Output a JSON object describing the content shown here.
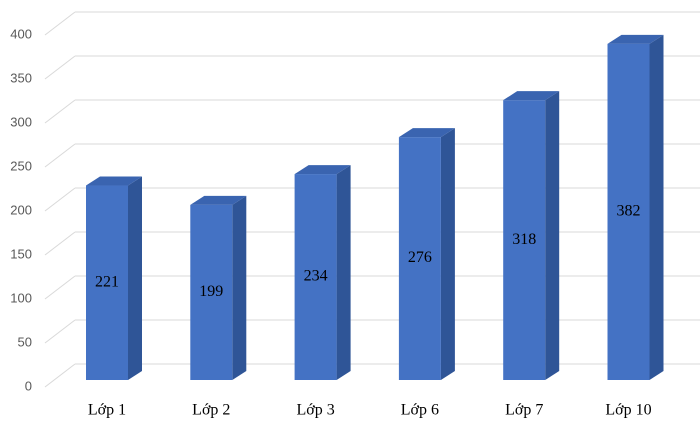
{
  "chart_data": {
    "type": "bar3d",
    "categories": [
      "Lớp 1",
      "Lớp 2",
      "Lớp 3",
      "Lớp 6",
      "Lớp 7",
      "Lớp 10"
    ],
    "values": [
      221,
      199,
      234,
      276,
      318,
      382
    ],
    "color": "#4472c4",
    "ylim": [
      0,
      400
    ],
    "yticks": [
      0,
      50,
      100,
      150,
      200,
      250,
      300,
      350,
      400
    ],
    "grid": true,
    "data_labels": true
  }
}
